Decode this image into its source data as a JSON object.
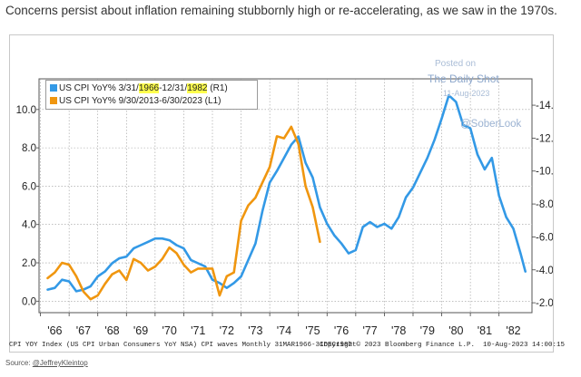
{
  "caption": "Concerns persist about inflation remaining stubbornly high or re-accelerating, as we saw in the 1970s.",
  "source_prefix": "Source: ",
  "source_link": "@JeffreyKleintop",
  "watermark": {
    "posted_on": "Posted on",
    "site": "The Daily Shot",
    "date": "11-Aug-2023",
    "handle": "@SoberLook"
  },
  "footer": {
    "left": "CPI YOY Index (US CPI Urban Consumers YoY NSA) CPI waves  Monthly 31MAR1966-31DEC1982",
    "copyright": "Copyright© 2023 Bloomberg Finance L.P.",
    "stamp": "10-Aug-2023 14:00:15"
  },
  "legend": {
    "series1_pre": "US CPI YoY% 3/31/",
    "series1_hl1": "1966",
    "series1_mid": "-12/31/",
    "series1_hl2": "1982",
    "series1_post": " (R1)",
    "series2": "US CPI YoY% 9/30/2013-6/30/2023 (L1)"
  },
  "colors": {
    "blue": "#3399e6",
    "orange": "#f0960f"
  },
  "chart_data": {
    "type": "line",
    "title": "",
    "xlabel": "",
    "ylabel_left": "",
    "ylabel_right": "",
    "x_tick_labels": [
      "'66",
      "'67",
      "'68",
      "'69",
      "'70",
      "'71",
      "'72",
      "'73",
      "'74",
      "'75",
      "'76",
      "'77",
      "'78",
      "'79",
      "'80",
      "'81",
      "'82"
    ],
    "left_axis": {
      "ylim": [
        -0.6,
        11.6
      ],
      "ticks": [
        0.0,
        2.0,
        4.0,
        6.0,
        8.0,
        10.0
      ],
      "labels": [
        "0.0",
        "2.0",
        "4.0",
        "6.0",
        "8.0",
        "10.0"
      ]
    },
    "right_axis": {
      "ylim": [
        1.4,
        15.6
      ],
      "ticks": [
        2.0,
        4.0,
        6.0,
        8.0,
        10.0,
        12.0,
        14.0
      ],
      "labels": [
        "2.0",
        "4.0",
        "6.0",
        "8.0",
        "10.0",
        "12.0",
        "14.0"
      ]
    },
    "grid": true,
    "series": [
      {
        "name": "US CPI YoY% 3/31/1966-12/31/1982 (R1)",
        "axis": "right",
        "color": "#3399e6",
        "x": [
          1966.25,
          1966.5,
          1966.75,
          1967.0,
          1967.25,
          1967.5,
          1967.75,
          1968.0,
          1968.25,
          1968.5,
          1968.75,
          1969.0,
          1969.25,
          1969.5,
          1969.75,
          1970.0,
          1970.25,
          1970.5,
          1970.75,
          1971.0,
          1971.25,
          1971.5,
          1971.75,
          1972.0,
          1972.25,
          1972.5,
          1972.75,
          1973.0,
          1973.25,
          1973.5,
          1973.75,
          1974.0,
          1974.25,
          1974.5,
          1974.75,
          1975.0,
          1975.25,
          1975.5,
          1975.75,
          1976.0,
          1976.25,
          1976.5,
          1976.75,
          1977.0,
          1977.25,
          1977.5,
          1977.75,
          1978.0,
          1978.25,
          1978.5,
          1978.75,
          1979.0,
          1979.25,
          1979.5,
          1979.75,
          1980.0,
          1980.25,
          1980.5,
          1980.75,
          1981.0,
          1981.25,
          1981.5,
          1981.75,
          1982.0,
          1982.25,
          1982.5,
          1982.75,
          1982.92
        ],
        "values": [
          2.8,
          2.9,
          3.4,
          3.3,
          2.7,
          2.8,
          3.0,
          3.6,
          3.9,
          4.4,
          4.7,
          4.8,
          5.3,
          5.5,
          5.7,
          5.9,
          5.9,
          5.8,
          5.5,
          5.3,
          4.6,
          4.4,
          4.2,
          3.4,
          3.2,
          2.9,
          3.2,
          3.6,
          4.6,
          5.6,
          7.6,
          9.3,
          10.0,
          10.8,
          11.6,
          12.1,
          10.5,
          9.6,
          7.8,
          6.8,
          6.1,
          5.6,
          5.0,
          5.2,
          6.6,
          6.9,
          6.6,
          6.8,
          6.5,
          7.2,
          8.4,
          9.0,
          9.9,
          10.8,
          11.9,
          13.2,
          14.6,
          14.2,
          12.8,
          12.6,
          11.0,
          10.1,
          10.8,
          8.5,
          7.2,
          6.5,
          5.0,
          3.9
        ]
      },
      {
        "name": "US CPI YoY% 9/30/2013-6/30/2023 (L1)",
        "axis": "left",
        "color": "#f0960f",
        "x": [
          1966.25,
          1966.5,
          1966.75,
          1967.0,
          1967.25,
          1967.5,
          1967.75,
          1968.0,
          1968.25,
          1968.5,
          1968.75,
          1969.0,
          1969.25,
          1969.5,
          1969.75,
          1970.0,
          1970.25,
          1970.5,
          1970.75,
          1971.0,
          1971.25,
          1971.5,
          1971.75,
          1972.0,
          1972.25,
          1972.5,
          1972.75,
          1973.0,
          1973.25,
          1973.5,
          1973.75,
          1974.0,
          1974.25,
          1974.5,
          1974.75,
          1975.0,
          1975.25,
          1975.5,
          1975.75
        ],
        "values": [
          1.2,
          1.5,
          2.0,
          1.9,
          1.3,
          0.5,
          0.1,
          0.3,
          0.9,
          1.4,
          1.6,
          1.1,
          2.2,
          2.0,
          1.6,
          1.8,
          2.2,
          2.8,
          2.5,
          1.9,
          1.5,
          1.7,
          1.7,
          1.7,
          0.3,
          1.3,
          1.5,
          4.2,
          5.0,
          5.4,
          6.2,
          7.0,
          8.6,
          8.5,
          9.1,
          8.2,
          6.0,
          4.9,
          3.1
        ]
      }
    ]
  }
}
